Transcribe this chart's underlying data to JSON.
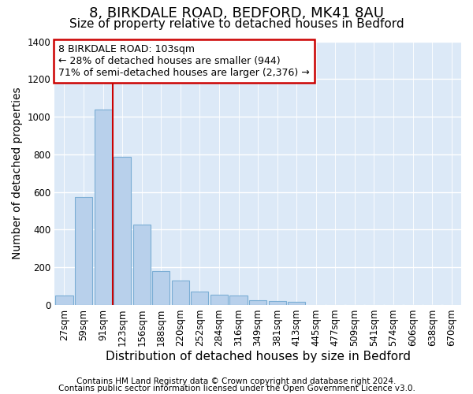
{
  "title1": "8, BIRKDALE ROAD, BEDFORD, MK41 8AU",
  "title2": "Size of property relative to detached houses in Bedford",
  "xlabel": "Distribution of detached houses by size in Bedford",
  "ylabel": "Number of detached properties",
  "categories": [
    "27sqm",
    "59sqm",
    "91sqm",
    "123sqm",
    "156sqm",
    "188sqm",
    "220sqm",
    "252sqm",
    "284sqm",
    "316sqm",
    "349sqm",
    "381sqm",
    "413sqm",
    "445sqm",
    "477sqm",
    "509sqm",
    "541sqm",
    "574sqm",
    "606sqm",
    "638sqm",
    "670sqm"
  ],
  "values": [
    50,
    575,
    1040,
    785,
    425,
    180,
    130,
    70,
    55,
    50,
    25,
    20,
    15,
    0,
    0,
    0,
    0,
    0,
    0,
    0,
    0
  ],
  "bar_color": "#b8d0eb",
  "bar_edge_color": "#7aadd4",
  "vline_color": "#cc0000",
  "annotation_text": "8 BIRKDALE ROAD: 103sqm\n← 28% of detached houses are smaller (944)\n71% of semi-detached houses are larger (2,376) →",
  "annotation_box_color": "#ffffff",
  "annotation_box_edge": "#cc0000",
  "ylim": [
    0,
    1400
  ],
  "yticks": [
    0,
    200,
    400,
    600,
    800,
    1000,
    1200,
    1400
  ],
  "plot_bg_color": "#dce9f7",
  "fig_bg_color": "#ffffff",
  "footer1": "Contains HM Land Registry data © Crown copyright and database right 2024.",
  "footer2": "Contains public sector information licensed under the Open Government Licence v3.0.",
  "title_fontsize": 13,
  "subtitle_fontsize": 11,
  "axis_label_fontsize": 10,
  "tick_fontsize": 8.5,
  "footer_fontsize": 7.5
}
